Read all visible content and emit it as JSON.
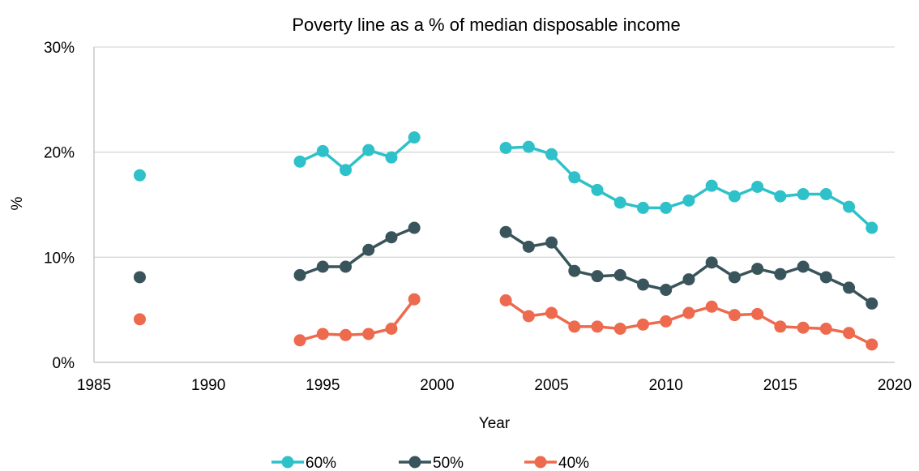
{
  "chart_data": {
    "type": "line",
    "title": "Poverty line as a % of median disposable income",
    "xlabel": "Year",
    "ylabel": "%",
    "xlim": [
      1985,
      2020
    ],
    "ylim": [
      0,
      30
    ],
    "x_ticks": [
      "1985",
      "1990",
      "1995",
      "2000",
      "2005",
      "2010",
      "2015",
      "2020"
    ],
    "y_ticks": [
      "0%",
      "10%",
      "20%",
      "30%"
    ],
    "grid": true,
    "legend_position": "bottom",
    "series": [
      {
        "name": "60%",
        "color": "#2EC1C9",
        "points": [
          [
            1987,
            17.8
          ],
          [
            1994,
            19.1
          ],
          [
            1995,
            20.1
          ],
          [
            1996,
            18.3
          ],
          [
            1997,
            20.2
          ],
          [
            1998,
            19.5
          ],
          [
            1999,
            21.4
          ],
          [
            2003,
            20.4
          ],
          [
            2004,
            20.5
          ],
          [
            2005,
            19.8
          ],
          [
            2006,
            17.6
          ],
          [
            2007,
            16.4
          ],
          [
            2008,
            15.2
          ],
          [
            2009,
            14.7
          ],
          [
            2010,
            14.7
          ],
          [
            2011,
            15.4
          ],
          [
            2012,
            16.8
          ],
          [
            2013,
            15.8
          ],
          [
            2014,
            16.7
          ],
          [
            2015,
            15.8
          ],
          [
            2016,
            16.0
          ],
          [
            2017,
            16.0
          ],
          [
            2018,
            14.8
          ],
          [
            2019,
            12.8
          ]
        ],
        "segments": [
          [
            0,
            0
          ],
          [
            1,
            6
          ],
          [
            7,
            23
          ]
        ]
      },
      {
        "name": "50%",
        "color": "#3A545C",
        "points": [
          [
            1987,
            8.1
          ],
          [
            1994,
            8.3
          ],
          [
            1995,
            9.1
          ],
          [
            1996,
            9.1
          ],
          [
            1997,
            10.7
          ],
          [
            1998,
            11.9
          ],
          [
            1999,
            12.8
          ],
          [
            2003,
            12.4
          ],
          [
            2004,
            11.0
          ],
          [
            2005,
            11.4
          ],
          [
            2006,
            8.7
          ],
          [
            2007,
            8.2
          ],
          [
            2008,
            8.3
          ],
          [
            2009,
            7.4
          ],
          [
            2010,
            6.9
          ],
          [
            2011,
            7.9
          ],
          [
            2012,
            9.5
          ],
          [
            2013,
            8.1
          ],
          [
            2014,
            8.9
          ],
          [
            2015,
            8.4
          ],
          [
            2016,
            9.1
          ],
          [
            2017,
            8.1
          ],
          [
            2018,
            7.1
          ],
          [
            2019,
            5.6
          ]
        ],
        "segments": [
          [
            0,
            0
          ],
          [
            1,
            6
          ],
          [
            7,
            23
          ]
        ]
      },
      {
        "name": "40%",
        "color": "#ED6A4E",
        "points": [
          [
            1987,
            4.1
          ],
          [
            1994,
            2.1
          ],
          [
            1995,
            2.7
          ],
          [
            1996,
            2.6
          ],
          [
            1997,
            2.7
          ],
          [
            1998,
            3.2
          ],
          [
            1999,
            6.0
          ],
          [
            2003,
            5.9
          ],
          [
            2004,
            4.4
          ],
          [
            2005,
            4.7
          ],
          [
            2006,
            3.4
          ],
          [
            2007,
            3.4
          ],
          [
            2008,
            3.2
          ],
          [
            2009,
            3.6
          ],
          [
            2010,
            3.9
          ],
          [
            2011,
            4.7
          ],
          [
            2012,
            5.3
          ],
          [
            2013,
            4.5
          ],
          [
            2014,
            4.6
          ],
          [
            2015,
            3.4
          ],
          [
            2016,
            3.3
          ],
          [
            2017,
            3.2
          ],
          [
            2018,
            2.8
          ],
          [
            2019,
            1.7
          ]
        ],
        "segments": [
          [
            0,
            0
          ],
          [
            1,
            6
          ],
          [
            7,
            23
          ]
        ]
      }
    ]
  }
}
